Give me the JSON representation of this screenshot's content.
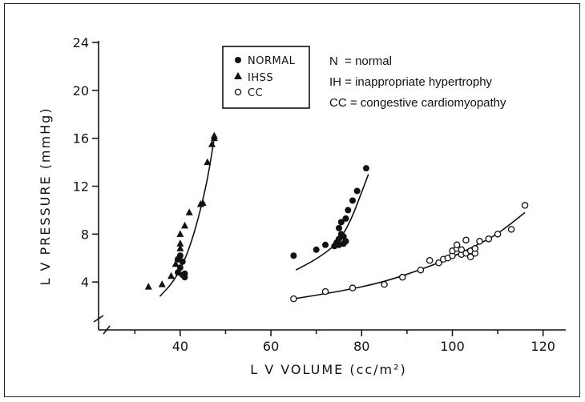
{
  "chart_data": {
    "type": "scatter",
    "title": "",
    "xlabel": "L V  VOLUME  (cc/m²)",
    "ylabel": "L V  PRESSURE  (mmHg)",
    "xlim": [
      22,
      125
    ],
    "ylim": [
      0,
      24
    ],
    "x_ticks": [
      40,
      60,
      80,
      100,
      120
    ],
    "y_ticks": [
      4,
      8,
      12,
      16,
      20,
      24
    ],
    "grid": false,
    "legend_placement": "top-center",
    "legend": [
      {
        "name": "NORMAL",
        "marker": "filled-circle"
      },
      {
        "name": "IHSS",
        "marker": "filled-triangle"
      },
      {
        "name": "CC",
        "marker": "open-circle"
      }
    ],
    "annotations": [
      "N  = normal",
      "IH = inappropriate hypertrophy",
      "CC = congestive cardiomyopathy"
    ],
    "series": [
      {
        "name": "NORMAL",
        "marker": "filled-circle",
        "points": [
          [
            65,
            6.2
          ],
          [
            70,
            6.7
          ],
          [
            72,
            7.1
          ],
          [
            74,
            7.0
          ],
          [
            74.5,
            7.3
          ],
          [
            75,
            7.1
          ],
          [
            75,
            7.6
          ],
          [
            75.5,
            8.0
          ],
          [
            76,
            7.2
          ],
          [
            76,
            7.8
          ],
          [
            76.5,
            7.4
          ],
          [
            75,
            8.5
          ],
          [
            75.5,
            9.0
          ],
          [
            76.5,
            9.3
          ],
          [
            77,
            10.0
          ],
          [
            78,
            10.8
          ],
          [
            79,
            11.6
          ],
          [
            81,
            13.5
          ]
        ],
        "fit_curve": [
          [
            65.5,
            5.0
          ],
          [
            70,
            5.9
          ],
          [
            74,
            7.0
          ],
          [
            76,
            8.0
          ],
          [
            78,
            9.5
          ],
          [
            80,
            11.5
          ],
          [
            81.5,
            13.0
          ]
        ]
      },
      {
        "name": "IHSS",
        "marker": "filled-triangle",
        "points": [
          [
            33,
            3.6
          ],
          [
            36,
            3.8
          ],
          [
            38,
            4.5
          ],
          [
            39,
            5.5
          ],
          [
            39.5,
            6.0
          ],
          [
            40,
            6.8
          ],
          [
            40,
            7.2
          ],
          [
            40,
            8.0
          ],
          [
            41,
            8.7
          ],
          [
            42,
            9.8
          ],
          [
            44.5,
            10.5
          ],
          [
            45,
            10.6
          ],
          [
            46,
            14.0
          ],
          [
            47,
            15.5
          ],
          [
            47.5,
            16.0
          ],
          [
            47.5,
            16.2
          ]
        ],
        "extra_filled_circles": [
          [
            39.5,
            4.8
          ],
          [
            40,
            5.2
          ],
          [
            40.5,
            4.6
          ],
          [
            40.5,
            5.7
          ],
          [
            41,
            4.4
          ],
          [
            41,
            4.7
          ],
          [
            40,
            6.2
          ],
          [
            39.5,
            5.9
          ]
        ],
        "fit_curve": [
          [
            35.5,
            2.8
          ],
          [
            38,
            3.8
          ],
          [
            40,
            5.0
          ],
          [
            42,
            6.8
          ],
          [
            44,
            9.3
          ],
          [
            46,
            12.5
          ],
          [
            47.5,
            16.0
          ]
        ]
      },
      {
        "name": "CC",
        "marker": "open-circle",
        "points": [
          [
            65,
            2.6
          ],
          [
            72,
            3.2
          ],
          [
            78,
            3.5
          ],
          [
            85,
            3.8
          ],
          [
            89,
            4.4
          ],
          [
            93,
            5.0
          ],
          [
            95,
            5.8
          ],
          [
            97,
            5.6
          ],
          [
            98,
            5.9
          ],
          [
            99,
            6.0
          ],
          [
            100,
            6.2
          ],
          [
            100,
            6.6
          ],
          [
            101,
            6.8
          ],
          [
            101,
            7.1
          ],
          [
            102,
            6.3
          ],
          [
            102,
            6.7
          ],
          [
            103,
            6.4
          ],
          [
            103,
            7.5
          ],
          [
            104,
            6.1
          ],
          [
            104,
            6.6
          ],
          [
            105,
            6.4
          ],
          [
            105,
            6.8
          ],
          [
            106,
            7.4
          ],
          [
            108,
            7.6
          ],
          [
            110,
            8.0
          ],
          [
            113,
            8.4
          ],
          [
            116,
            10.4
          ]
        ],
        "fit_curve": [
          [
            65,
            2.6
          ],
          [
            75,
            3.2
          ],
          [
            85,
            4.0
          ],
          [
            95,
            5.3
          ],
          [
            100,
            6.1
          ],
          [
            105,
            7.0
          ],
          [
            110,
            8.0
          ],
          [
            116,
            9.8
          ]
        ]
      }
    ]
  }
}
